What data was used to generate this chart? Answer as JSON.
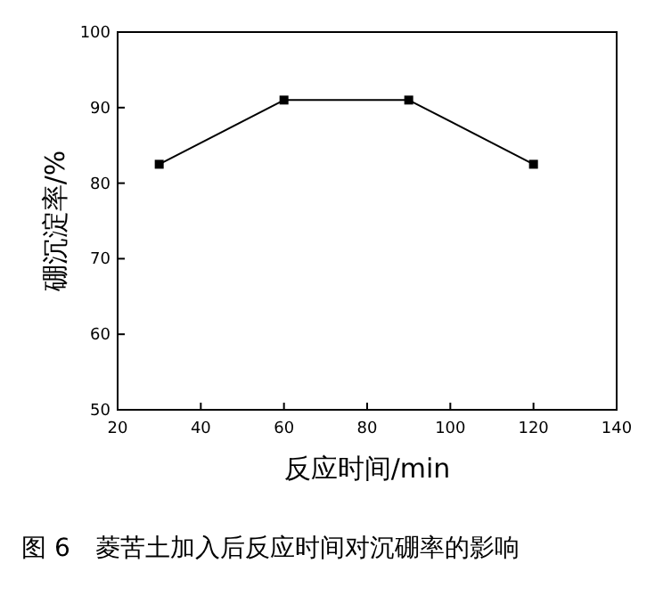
{
  "chart_data": {
    "type": "line",
    "xlabel": "反应时间/min",
    "ylabel": "硼沉淀率/%",
    "x": [
      30,
      60,
      90,
      120
    ],
    "series": [
      {
        "color": "#000000",
        "values": [
          82.5,
          91,
          91,
          82.5
        ]
      }
    ],
    "xlim": [
      20,
      140
    ],
    "xticks": [
      20,
      40,
      60,
      80,
      100,
      120,
      140
    ],
    "ylim": [
      50,
      100
    ],
    "yticks": [
      50,
      60,
      70,
      80,
      90,
      100
    ],
    "marker": "square",
    "line_style": "solid",
    "grid": false,
    "annotations": [
      "图 6　菱苦土加入后反应时间对沉硼率的影响"
    ]
  }
}
